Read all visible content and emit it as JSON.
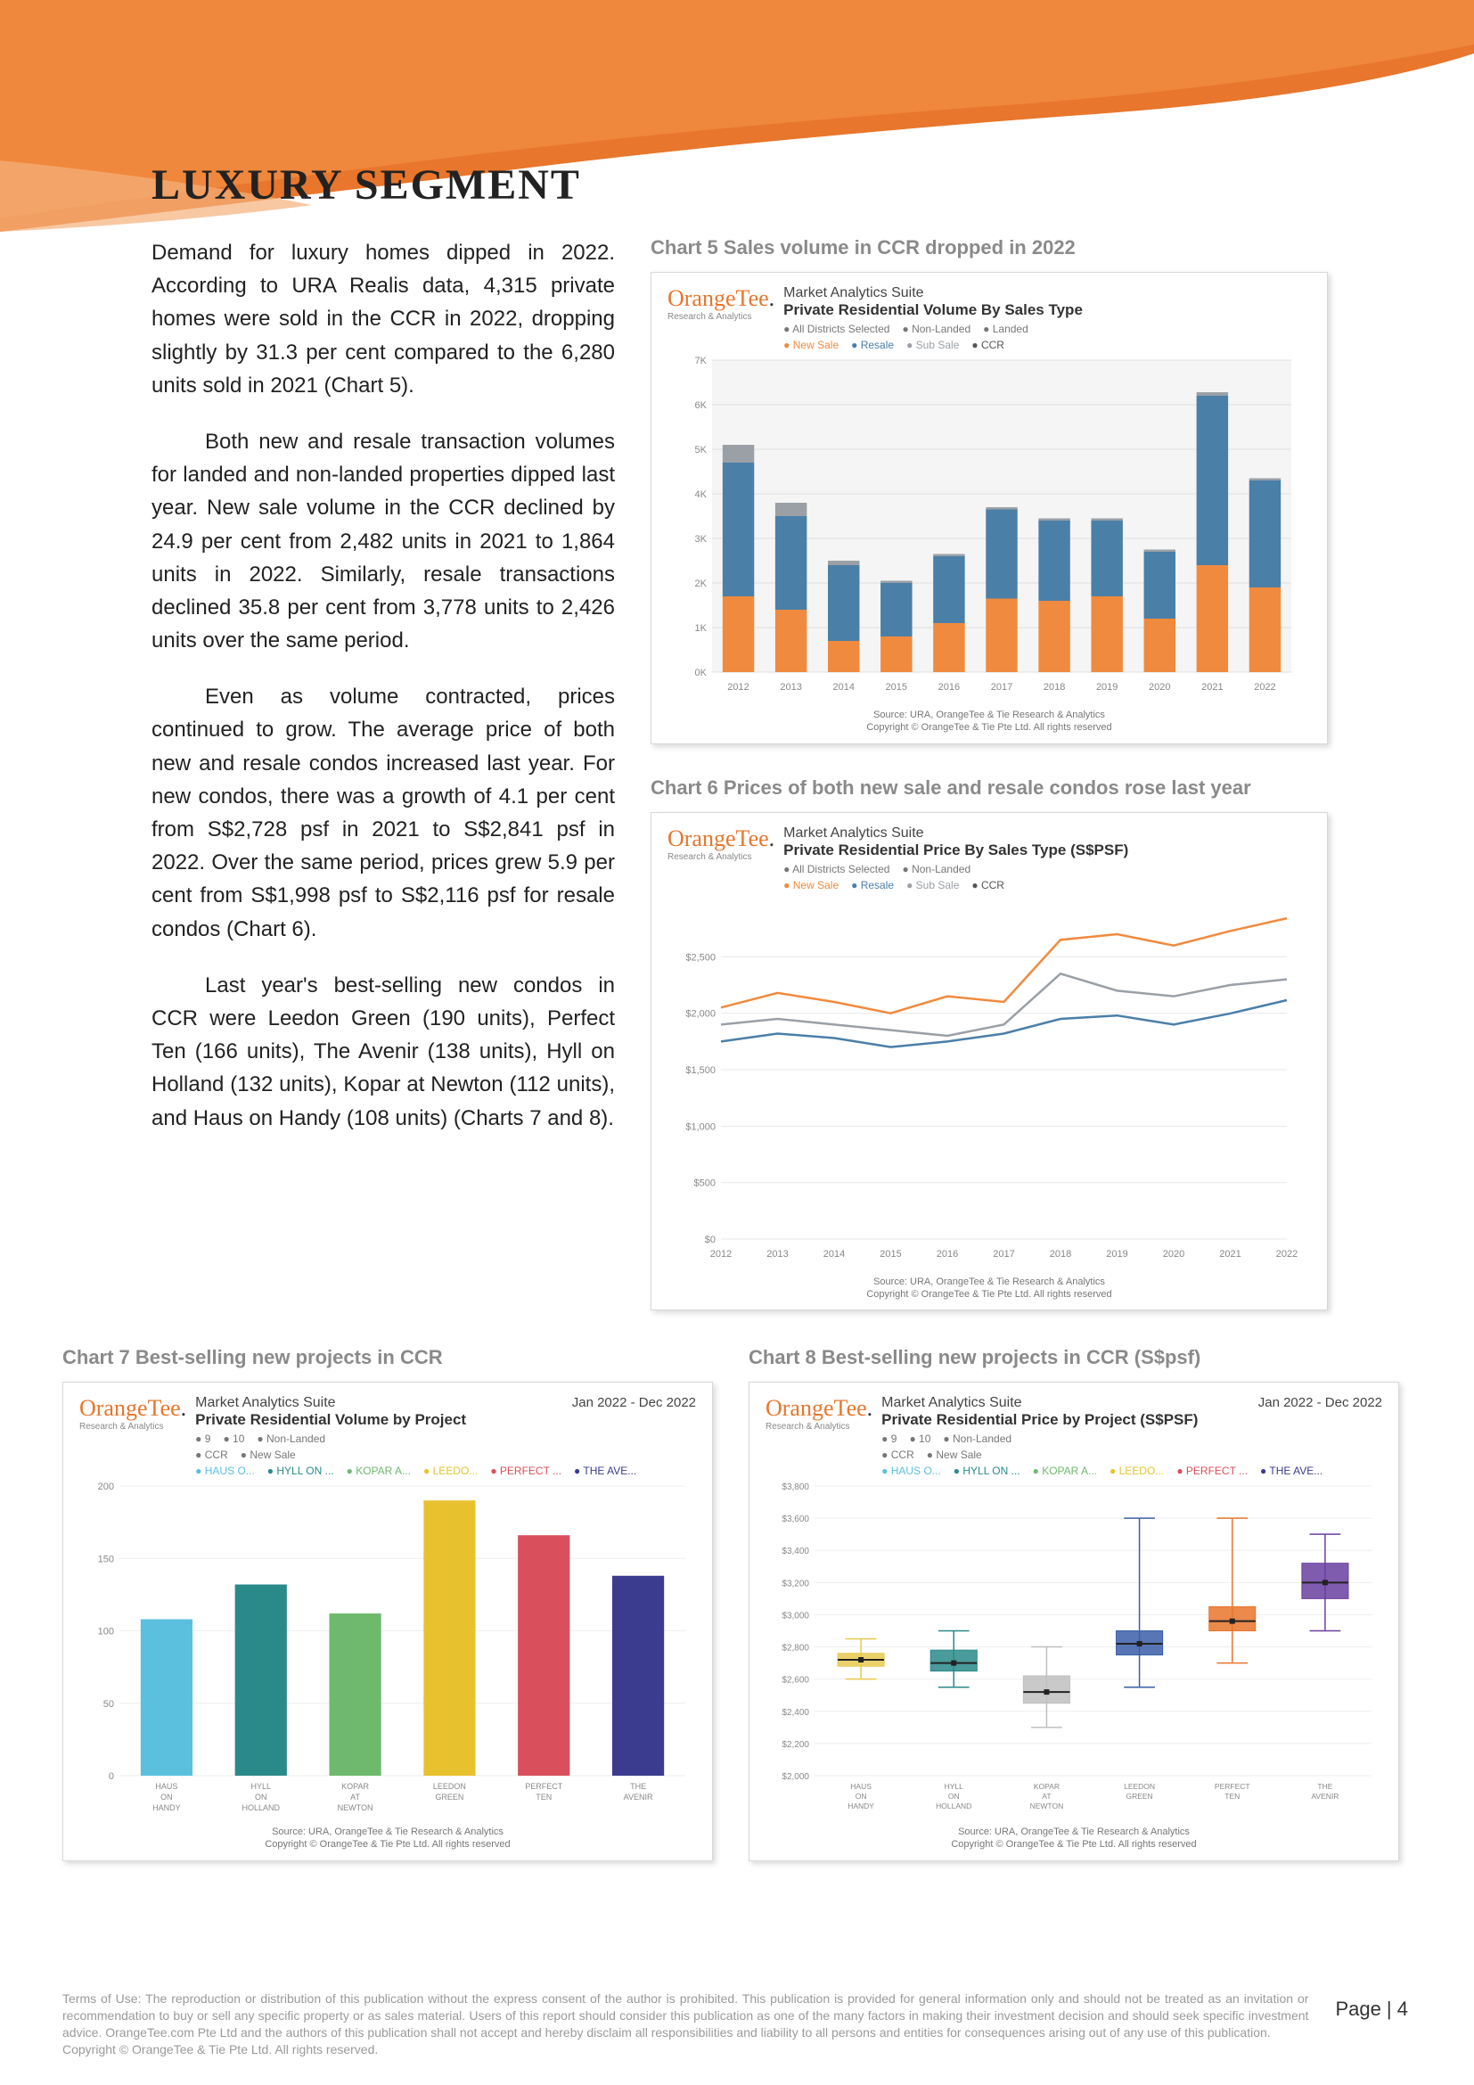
{
  "header": {
    "swoosh_color_top": "#e8762c",
    "swoosh_color_mid": "#f08a3e",
    "swoosh_color_light": "#f5b07a"
  },
  "section_title": "LUXURY SEGMENT",
  "paragraphs": {
    "p1": "Demand for luxury homes dipped in 2022. According to URA Realis data, 4,315 private homes were sold in the CCR in 2022, dropping slightly by 31.3 per cent compared to the 6,280 units sold in 2021 (Chart 5).",
    "p2": "Both new and resale transaction volumes for landed and non-landed properties dipped last year. New sale volume in the CCR declined by 24.9 per cent from 2,482 units in 2021 to 1,864 units in 2022. Similarly, resale transactions declined 35.8 per cent from 3,778 units to 2,426 units over the same period.",
    "p3": "Even as volume contracted, prices continued to grow.  The average price of both new and resale condos increased last year. For new condos, there was a growth of 4.1 per cent from S$2,728 psf in 2021 to S$2,841 psf in 2022. Over the same period, prices grew 5.9 per cent from S$1,998 psf to S$2,116 psf for resale condos (Chart 6).",
    "p4": "Last year's best-selling new condos in CCR were Leedon Green (190 units), Perfect Ten (166 units), The Avenir (138 units), Hyll on Holland (132 units), Kopar at Newton (112 units), and Haus on Handy (108 units) (Charts 7 and 8)."
  },
  "chart5": {
    "title": "Chart 5 Sales volume in CCR dropped in 2022",
    "logo": "OrangeTee",
    "logo_sub": "Research & Analytics",
    "suite": "Market Analytics Suite",
    "subtitle": "Private Residential Volume By Sales Type",
    "legend_top": [
      "All Districts Selected",
      "Non-Landed",
      "Landed"
    ],
    "legend_series": [
      "New Sale",
      "Resale",
      "Sub Sale",
      "CCR"
    ],
    "type": "stacked_bar",
    "years": [
      "2012",
      "2013",
      "2014",
      "2015",
      "2016",
      "2017",
      "2018",
      "2019",
      "2020",
      "2021",
      "2022"
    ],
    "series": {
      "New Sale": [
        1700,
        1400,
        700,
        800,
        1100,
        1650,
        1600,
        1700,
        1200,
        2400,
        1900
      ],
      "Resale": [
        3000,
        2100,
        1700,
        1200,
        1500,
        2000,
        1800,
        1700,
        1500,
        3800,
        2400
      ],
      "Sub Sale": [
        400,
        300,
        100,
        50,
        50,
        50,
        50,
        50,
        50,
        80,
        50
      ]
    },
    "colors": {
      "New Sale": "#f08a3e",
      "Resale": "#4a7fa8",
      "Sub Sale": "#9aa0a6"
    },
    "ylim": [
      0,
      7000
    ],
    "ytick_step": 1000,
    "ylabels": [
      "0K",
      "1K",
      "2K",
      "3K",
      "4K",
      "5K",
      "6K",
      "7K"
    ],
    "bg": "#f5f5f5",
    "grid": "#e0e0e0",
    "source": "Source: URA, OrangeTee & Tie Research & Analytics",
    "copyright": "Copyright © OrangeTee & Tie Pte Ltd. All rights reserved"
  },
  "chart6": {
    "title": "Chart 6 Prices of both new sale and resale condos rose last year",
    "logo": "OrangeTee",
    "logo_sub": "Research & Analytics",
    "suite": "Market Analytics Suite",
    "subtitle": "Private Residential Price By Sales Type (S$PSF)",
    "legend_top": [
      "All Districts Selected",
      "Non-Landed"
    ],
    "legend_series": [
      "New Sale",
      "Resale",
      "Sub Sale",
      "CCR"
    ],
    "type": "line",
    "years": [
      "2012",
      "2013",
      "2014",
      "2015",
      "2016",
      "2017",
      "2018",
      "2019",
      "2020",
      "2021",
      "2022"
    ],
    "series": {
      "New Sale": [
        2050,
        2180,
        2100,
        2000,
        2150,
        2100,
        2650,
        2700,
        2600,
        2728,
        2841
      ],
      "Resale": [
        1750,
        1820,
        1780,
        1700,
        1750,
        1820,
        1950,
        1980,
        1900,
        1998,
        2116
      ],
      "Sub Sale": [
        1900,
        1950,
        1900,
        1850,
        1800,
        1900,
        2350,
        2200,
        2150,
        2250,
        2300
      ]
    },
    "colors": {
      "New Sale": "#f08a3e",
      "Resale": "#4a7fa8",
      "Sub Sale": "#9aa0a6"
    },
    "ylim": [
      0,
      3000
    ],
    "ytick_step": 500,
    "ylabels": [
      "$0",
      "$500",
      "$1,000",
      "$1,500",
      "$2,000",
      "$2,500"
    ],
    "bg": "#ffffff",
    "grid": "#e8e8e8",
    "source": "Source: URA, OrangeTee & Tie Research & Analytics",
    "copyright": "Copyright © OrangeTee & Tie Pte Ltd. All rights reserved"
  },
  "chart7": {
    "title": "Chart 7 Best-selling new projects in CCR",
    "logo": "OrangeTee",
    "logo_sub": "Research & Analytics",
    "suite": "Market Analytics Suite",
    "date_range": "Jan 2022 - Dec 2022",
    "subtitle": "Private Residential Volume by Project",
    "legend_top": [
      "9",
      "10",
      "Non-Landed"
    ],
    "legend_mid": [
      "CCR",
      "New Sale"
    ],
    "legend_series": [
      "HAUS O...",
      "HYLL ON ...",
      "KOPAR A...",
      "LEEDO...",
      "PERFECT ...",
      "THE AVE..."
    ],
    "type": "bar",
    "categories": [
      "HAUS ON HANDY",
      "HYLL ON HOLLAND",
      "KOPAR AT NEWTON",
      "LEEDON GREEN",
      "PERFECT TEN",
      "THE AVENIR"
    ],
    "values": [
      108,
      132,
      112,
      190,
      166,
      138
    ],
    "colors": [
      "#5bc0de",
      "#2a8a8a",
      "#6fb96f",
      "#e8c22e",
      "#d94f5c",
      "#3b3b8f"
    ],
    "ylim": [
      0,
      200
    ],
    "ytick_step": 50,
    "bg": "#ffffff",
    "grid": "#eeeeee",
    "source": "Source: URA, OrangeTee & Tie Research & Analytics",
    "copyright": "Copyright © OrangeTee & Tie Pte Ltd. All rights reserved"
  },
  "chart8": {
    "title": "Chart 8 Best-selling new projects in CCR (S$psf)",
    "logo": "OrangeTee",
    "logo_sub": "Research & Analytics",
    "suite": "Market Analytics Suite",
    "date_range": "Jan 2022 - Dec 2022",
    "subtitle": "Private Residential Price by Project (S$PSF)",
    "legend_top": [
      "9",
      "10",
      "Non-Landed"
    ],
    "legend_mid": [
      "CCR",
      "New Sale"
    ],
    "legend_series": [
      "HAUS O...",
      "HYLL ON ...",
      "KOPAR A...",
      "LEEDO...",
      "PERFECT ...",
      "THE AVE..."
    ],
    "type": "boxplot",
    "categories": [
      "HAUS ON HANDY",
      "HYLL ON HOLLAND",
      "KOPAR AT NEWTON",
      "LEEDON GREEN",
      "PERFECT TEN",
      "THE AVENIR"
    ],
    "boxes": [
      {
        "min": 2600,
        "q1": 2680,
        "med": 2720,
        "q3": 2760,
        "max": 2850
      },
      {
        "min": 2550,
        "q1": 2650,
        "med": 2700,
        "q3": 2780,
        "max": 2900
      },
      {
        "min": 2300,
        "q1": 2450,
        "med": 2520,
        "q3": 2620,
        "max": 2800
      },
      {
        "min": 2550,
        "q1": 2750,
        "med": 2820,
        "q3": 2900,
        "max": 3600
      },
      {
        "min": 2700,
        "q1": 2900,
        "med": 2960,
        "q3": 3050,
        "max": 3600
      },
      {
        "min": 2900,
        "q1": 3100,
        "med": 3200,
        "q3": 3320,
        "max": 3500
      }
    ],
    "colors": [
      "#e8c94f",
      "#2a8a8a",
      "#bfbfbf",
      "#3b5ea8",
      "#e8762c",
      "#6a3fa0"
    ],
    "ylim": [
      2000,
      3800
    ],
    "ytick_step": 200,
    "bg": "#ffffff",
    "grid": "#eeeeee",
    "source": "Source: URA, OrangeTee & Tie Research & Analytics",
    "copyright": "Copyright © OrangeTee & Tie Pte Ltd. All rights reserved"
  },
  "footer": {
    "terms": "Terms of Use: The reproduction or distribution of this publication without the express consent of the author is prohibited. This publication is provided for general information only and should not be treated as an invitation or recommendation to buy or sell any specific property or as sales material.  Users of this report should consider this publication as one of the many factors in making their investment decision and should seek specific investment advice. OrangeTee.com Pte Ltd and the authors of this publication shall not accept and hereby disclaim all responsibilities and liability to all persons and entities for consequences arising out of any use of this publication.",
    "copyright": "Copyright © OrangeTee & Tie Pte Ltd. All rights reserved.",
    "page": "Page | 4"
  }
}
